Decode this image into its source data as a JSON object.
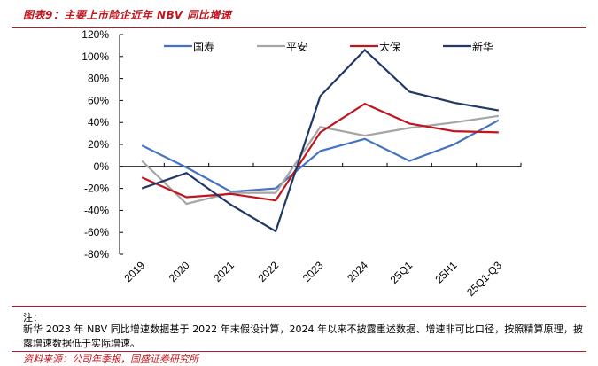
{
  "header": {
    "title": "图表9：主要上市险企近年 NBV 同比增速"
  },
  "chart_data": {
    "type": "line",
    "title": "",
    "xlabel": "",
    "ylabel": "",
    "ylim": [
      -80,
      120
    ],
    "y_ticks": [
      120,
      100,
      80,
      60,
      40,
      20,
      0,
      -20,
      -40,
      -60,
      -80
    ],
    "y_tick_labels": [
      "120%",
      "100%",
      "80%",
      "60%",
      "40%",
      "20%",
      "0%",
      "-20%",
      "-40%",
      "-60%",
      "-80%"
    ],
    "categories": [
      "2019",
      "2020",
      "2021",
      "2022",
      "2023",
      "2024",
      "25Q1",
      "25H1",
      "25Q1-Q3"
    ],
    "grid": false,
    "legend_position": "top",
    "series": [
      {
        "name": "国寿",
        "color": "#4472c4",
        "values": [
          19,
          -1,
          -23,
          -20,
          14,
          25,
          5,
          20,
          42
        ]
      },
      {
        "name": "平安",
        "color": "#a5a5a5",
        "values": [
          5,
          -34,
          -24,
          -24,
          36,
          28,
          35,
          40,
          46
        ]
      },
      {
        "name": "太保",
        "color": "#c0141e",
        "values": [
          -10,
          -28,
          -25,
          -31,
          31,
          57,
          39,
          32,
          31
        ]
      },
      {
        "name": "新华",
        "color": "#203864",
        "values": [
          -20,
          -6,
          -35,
          -59,
          64,
          106,
          68,
          58,
          51
        ]
      }
    ]
  },
  "footer": {
    "note_label": "注：",
    "note": "新华 2023 年 NBV 同比增速数据基于 2022 年末假设计算，2024 年以来不披露重述数据、增速非可比口径，按照精算原理，披露增速数据低于实际增速。",
    "source": "资料来源：公司年季报，国盛证券研究所"
  }
}
